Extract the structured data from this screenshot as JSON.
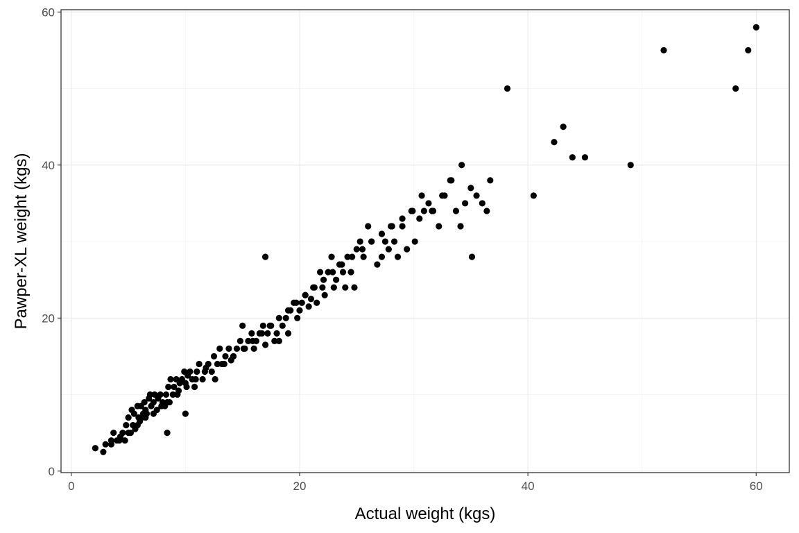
{
  "chart_data": {
    "type": "scatter",
    "title": "",
    "xlabel": "Actual weight (kgs)",
    "ylabel": "Pawper-XL weight (kgs)",
    "xlim": [
      -0.9,
      62.9
    ],
    "ylim": [
      -0.2,
      60.3
    ],
    "x_ticks": [
      0,
      20,
      40,
      60
    ],
    "y_ticks": [
      0,
      20,
      40,
      60
    ],
    "x_tick_labels": [
      "0",
      "20",
      "40",
      "60"
    ],
    "y_tick_labels": [
      "0",
      "20",
      "40",
      "60"
    ],
    "grid": true,
    "point_color": "#000000",
    "series": [
      {
        "x": [
          2.1,
          2.8,
          3.0,
          3.5,
          3.7,
          4.0,
          4.3,
          4.5,
          4.7,
          4.8,
          5.0,
          5.2,
          5.3,
          5.4,
          5.5,
          5.6,
          5.8,
          5.9,
          6.0,
          6.1,
          6.2,
          6.3,
          6.4,
          6.5,
          6.6,
          6.8,
          6.9,
          7.0,
          7.2,
          7.3,
          7.5,
          7.6,
          7.8,
          8.0,
          8.2,
          8.3,
          8.4,
          8.5,
          8.7,
          8.9,
          9.0,
          9.2,
          9.4,
          9.5,
          9.7,
          9.9,
          10.0,
          10.2,
          10.4,
          10.6,
          10.8,
          11.0,
          11.2,
          11.5,
          11.8,
          12.0,
          12.3,
          12.5,
          12.8,
          13.0,
          13.2,
          13.5,
          13.8,
          14.0,
          14.2,
          14.5,
          14.8,
          15.0,
          15.2,
          15.5,
          15.8,
          16.0,
          16.2,
          16.5,
          16.8,
          17.0,
          17.2,
          17.5,
          17.8,
          18.0,
          18.2,
          18.5,
          18.8,
          19.0,
          19.2,
          19.5,
          19.8,
          20.0,
          20.2,
          20.5,
          20.8,
          21.0,
          21.2,
          21.5,
          21.8,
          22.0,
          22.2,
          22.5,
          22.8,
          23.0,
          23.2,
          23.5,
          23.8,
          24.0,
          24.2,
          24.5,
          24.8,
          25.0,
          25.3,
          25.6,
          26.0,
          26.3,
          26.8,
          27.2,
          27.5,
          27.8,
          28.0,
          28.3,
          28.6,
          29.0,
          29.4,
          29.8,
          30.1,
          30.5,
          30.9,
          31.3,
          31.7,
          32.2,
          32.7,
          33.2,
          33.7,
          34.1,
          34.5,
          35.0,
          35.5,
          36.0,
          36.4,
          36.7,
          3.5,
          4.2,
          5.0,
          5.8,
          6.5,
          7.2,
          7.9,
          8.6,
          9.3,
          10.1,
          10.9,
          11.7,
          12.6,
          13.4,
          14.2,
          15.1,
          15.9,
          16.7,
          17.4,
          18.2,
          19.0,
          19.7,
          20.5,
          21.3,
          22.1,
          22.9,
          23.7,
          24.6,
          25.5,
          26.3,
          27.2,
          28.1,
          29.0,
          29.9,
          30.7,
          31.6,
          32.5,
          33.3,
          34.2,
          35.1,
          17.0,
          8.4,
          10.0,
          38.2,
          40.5,
          42.3,
          43.1,
          43.9,
          45.0,
          49.0,
          51.9,
          58.2,
          59.3,
          60.0
        ],
        "y": [
          3.0,
          2.5,
          3.5,
          4.0,
          5.0,
          4.0,
          4.5,
          5.0,
          4.0,
          6.0,
          7.0,
          5.0,
          8.0,
          6.0,
          7.5,
          5.5,
          8.5,
          7.0,
          6.5,
          8.5,
          7.0,
          7.5,
          9.0,
          8.0,
          7.5,
          9.5,
          10.0,
          8.5,
          9.0,
          10.0,
          8.0,
          9.5,
          10.0,
          9.0,
          8.5,
          10.0,
          9.0,
          11.0,
          12.0,
          10.0,
          11.0,
          12.0,
          10.5,
          11.5,
          12.0,
          13.0,
          11.5,
          12.5,
          13.0,
          12.0,
          11.0,
          13.0,
          14.0,
          12.0,
          13.5,
          14.0,
          13.0,
          15.0,
          14.0,
          16.0,
          14.0,
          15.0,
          16.0,
          14.5,
          15.0,
          16.0,
          17.0,
          19.0,
          16.0,
          17.0,
          18.0,
          16.0,
          17.0,
          18.0,
          19.0,
          16.5,
          18.0,
          19.0,
          17.0,
          18.0,
          17.0,
          19.0,
          20.0,
          18.0,
          21.0,
          22.0,
          20.0,
          21.0,
          22.0,
          23.0,
          21.5,
          22.5,
          24.0,
          22.0,
          26.0,
          24.0,
          23.0,
          26.0,
          28.0,
          24.0,
          25.0,
          27.0,
          26.0,
          24.0,
          28.0,
          26.0,
          24.0,
          29.0,
          30.0,
          28.0,
          32.0,
          30.0,
          27.0,
          28.0,
          30.0,
          29.0,
          32.0,
          30.0,
          28.0,
          32.0,
          29.0,
          34.0,
          30.0,
          33.0,
          34.0,
          35.0,
          34.0,
          32.0,
          36.0,
          38.0,
          34.0,
          32.0,
          35.0,
          37.0,
          36.0,
          35.0,
          34.0,
          38.0,
          3.5,
          4.0,
          5.0,
          6.0,
          7.0,
          7.5,
          8.5,
          9.0,
          10.0,
          11.0,
          12.0,
          13.0,
          12.0,
          14.0,
          15.0,
          16.0,
          17.0,
          18.0,
          19.0,
          20.0,
          21.0,
          22.0,
          23.0,
          24.0,
          25.0,
          26.0,
          27.0,
          28.0,
          29.0,
          30.0,
          31.0,
          32.0,
          33.0,
          34.0,
          36.0,
          34.0,
          36.0,
          38.0,
          40.0,
          28.0,
          28.0,
          5.0,
          7.5,
          50.0,
          36.0,
          43.0,
          45.0,
          41.0,
          41.0,
          40.0,
          55.0,
          50.0,
          55.0,
          58.0
        ]
      }
    ]
  }
}
